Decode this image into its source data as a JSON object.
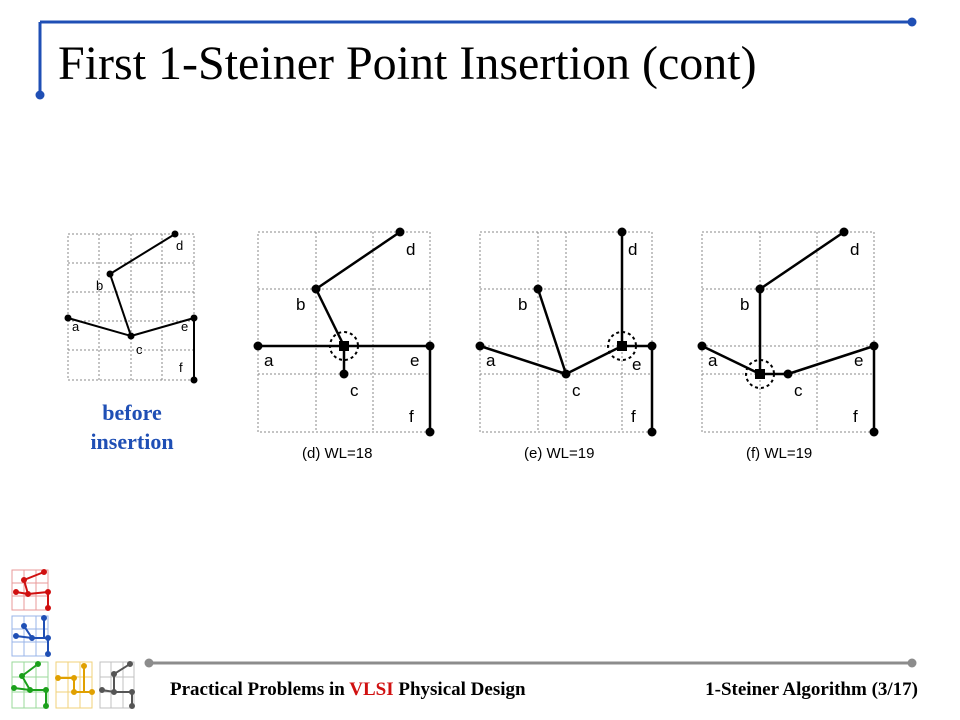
{
  "slide": {
    "title": "First 1-Steiner Point Insertion (cont)",
    "caption_line1": "before",
    "caption_line2": "insertion"
  },
  "footer": {
    "course_prefix": "Practical Problems in ",
    "course_highlight": "VLSI",
    "course_suffix": " Physical Design",
    "section": "1-Steiner Algorithm (3/17)"
  },
  "diagrams": {
    "d_caption": "(d) WL=18",
    "e_caption": "(e) WL=19",
    "f_caption": "(f) WL=19"
  },
  "pins": {
    "a": "a",
    "b": "b",
    "c": "c",
    "d": "d",
    "e": "e",
    "f": "f"
  },
  "colors": {
    "accent_blue": "#1f4fb5",
    "highlight_red": "#d01010",
    "rule_gray": "#8c8c8c"
  }
}
